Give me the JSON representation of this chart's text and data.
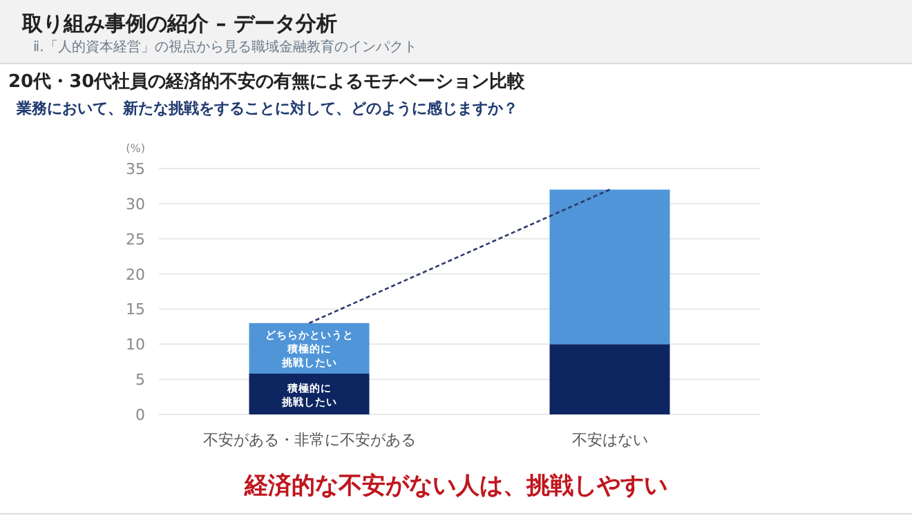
{
  "chart_data": {
    "type": "bar",
    "stacked": true,
    "title": "20代・30代社員の経済的不安の有無によるモチベーション比較",
    "subtitle": "業務において、新たな挑戦をすることに対して、どのように感じますか？",
    "ylabel": "(%)",
    "categories": [
      "不安がある・非常に不安がある",
      "不安はない"
    ],
    "series": [
      {
        "name": "積極的に挑戦したい",
        "color": "#0d2560",
        "values": [
          5.8,
          10
        ]
      },
      {
        "name": "どちらかというと積極的に挑戦したい",
        "color": "#4f95d8",
        "values": [
          7.2,
          22
        ]
      },
      {
        "type": "line",
        "color": "#2a3a6a",
        "line_style": "dashed",
        "values": [
          13,
          32
        ]
      }
    ],
    "ylim": [
      0,
      35
    ],
    "yticks": [
      0,
      5,
      10,
      15,
      20,
      25,
      30,
      35
    ],
    "grid": "y",
    "legend": false,
    "annotations": [
      "取り組み事例の紹介 – データ分析",
      "ⅱ.「人的資本経営」の視点から見る職域金融教育のインパクト",
      "経済的な不安がない人は、挑戦しやすい"
    ]
  }
}
